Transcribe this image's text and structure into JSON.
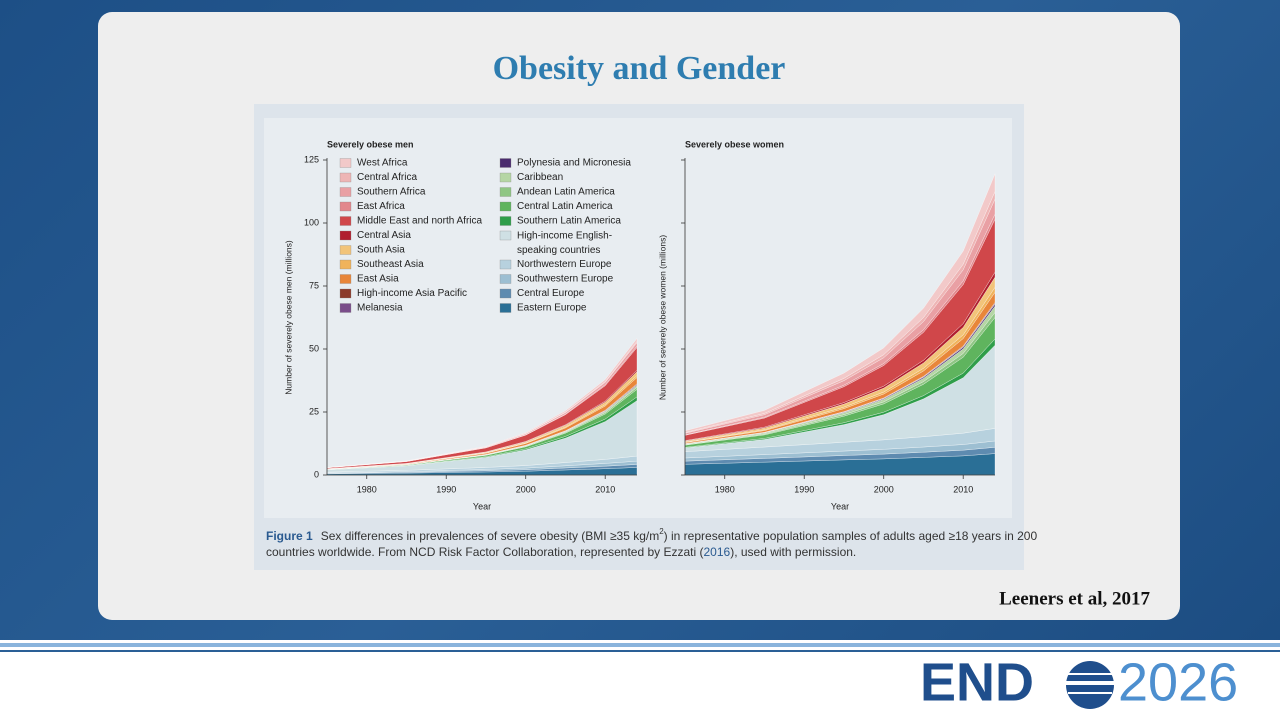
{
  "slide": {
    "title": "Obesity and Gender",
    "citation": "Leeners et al, 2017",
    "logo": {
      "left": "END",
      "right": "2026"
    },
    "caption": {
      "label": "Figure 1",
      "text1": "Sex differences in prevalences of severe obesity (BMI ≥35 kg/m",
      "sup": "2",
      "text2": ") in representative population samples of adults aged ≥18 years in 200",
      "text3": "countries worldwide. From NCD Risk Factor Collaboration, represented by Ezzati (",
      "link": "2016",
      "text4": "), used with permission."
    }
  },
  "chart_data": [
    {
      "type": "stacked-area",
      "title": "Severely obese men",
      "x_label": "Year",
      "y_label": "Number of severely obese men (millions)",
      "x": [
        1975,
        1985,
        1995,
        2000,
        2005,
        2010,
        2014
      ],
      "xlim": [
        1975,
        2014
      ],
      "xticks": [
        1980,
        1990,
        2000,
        2010
      ],
      "ylim": [
        0,
        125
      ],
      "yticks": [
        0,
        25,
        50,
        75,
        100,
        125
      ],
      "series": [
        {
          "name": "West Africa",
          "color": "#f2c9c9",
          "values": [
            0.05,
            0.1,
            0.2,
            0.3,
            0.5,
            0.8,
            1.2
          ]
        },
        {
          "name": "Central Africa",
          "color": "#eeb5b5",
          "values": [
            0.02,
            0.04,
            0.09,
            0.14,
            0.22,
            0.34,
            0.5
          ]
        },
        {
          "name": "Southern Africa",
          "color": "#e9a0a4",
          "values": [
            0.05,
            0.1,
            0.23,
            0.36,
            0.57,
            0.88,
            1.3
          ]
        },
        {
          "name": "East Africa",
          "color": "#e2878c",
          "values": [
            0.02,
            0.05,
            0.11,
            0.17,
            0.26,
            0.41,
            0.6
          ]
        },
        {
          "name": "Middle East and north Africa",
          "color": "#d0474a",
          "values": [
            0.36,
            0.72,
            1.6,
            2.5,
            4,
            6.1,
            9
          ]
        },
        {
          "name": "Central Asia",
          "color": "#b01e2e",
          "values": [
            0.02,
            0.05,
            0.11,
            0.17,
            0.26,
            0.41,
            0.6
          ]
        },
        {
          "name": "South Asia",
          "color": "#f2c47a",
          "values": [
            0.06,
            0.12,
            0.27,
            0.42,
            0.66,
            1,
            1.5
          ]
        },
        {
          "name": "Southeast Asia",
          "color": "#f0b35b",
          "values": [
            0.03,
            0.06,
            0.14,
            0.22,
            0.35,
            0.54,
            0.8
          ]
        },
        {
          "name": "East Asia",
          "color": "#e8863a",
          "values": [
            0.1,
            0.2,
            0.45,
            0.7,
            1.1,
            1.7,
            2.5
          ]
        },
        {
          "name": "High-income Asia Pacific",
          "color": "#8b3a2b",
          "values": [
            0.01,
            0.02,
            0.05,
            0.08,
            0.13,
            0.2,
            0.3
          ]
        },
        {
          "name": "Melanesia",
          "color": "#7a4d8a",
          "values": [
            0,
            0.01,
            0.02,
            0.03,
            0.04,
            0.07,
            0.1
          ]
        },
        {
          "name": "Polynesia and Micronesia",
          "color": "#4a2c6e",
          "values": [
            0.01,
            0.02,
            0.05,
            0.08,
            0.13,
            0.2,
            0.3
          ]
        },
        {
          "name": "Caribbean",
          "color": "#b5d6a4",
          "values": [
            0.03,
            0.06,
            0.13,
            0.2,
            0.31,
            0.48,
            0.7
          ]
        },
        {
          "name": "Andean Latin America",
          "color": "#8fc684",
          "values": [
            0.03,
            0.06,
            0.14,
            0.22,
            0.35,
            0.54,
            0.8
          ]
        },
        {
          "name": "Central Latin America",
          "color": "#5fb45e",
          "values": [
            0.12,
            0.24,
            0.54,
            0.84,
            1.3,
            2,
            3
          ]
        },
        {
          "name": "Southern Latin America",
          "color": "#2f9e4a",
          "values": [
            0.06,
            0.12,
            0.27,
            0.42,
            0.66,
            1,
            1.5
          ]
        },
        {
          "name": "High-income English-\nspeaking countries",
          "color": "#cfe0e4",
          "values": [
            0.9,
            1.8,
            4,
            6.2,
            9.7,
            15,
            22
          ]
        },
        {
          "name": "Northwestern Europe",
          "color": "#b7d1de",
          "values": [
            0.3,
            0.5,
            0.8,
            1,
            1.3,
            1.6,
            2
          ]
        },
        {
          "name": "Southwestern Europe",
          "color": "#9dbfd2",
          "values": [
            0.2,
            0.3,
            0.5,
            0.65,
            0.85,
            1.1,
            1.3
          ]
        },
        {
          "name": "Central Europe",
          "color": "#5e8bb0",
          "values": [
            0.2,
            0.3,
            0.5,
            0.6,
            0.8,
            1,
            1.2
          ]
        },
        {
          "name": "Eastern Europe",
          "color": "#2a6f96",
          "values": [
            0.45,
            0.75,
            1.2,
            1.5,
            2,
            2.5,
            3
          ]
        }
      ]
    },
    {
      "type": "stacked-area",
      "title": "Severely obese women",
      "x_label": "Year",
      "y_label": "Number of severely obese women (millions)",
      "x": [
        1975,
        1985,
        1995,
        2000,
        2005,
        2010,
        2014
      ],
      "xlim": [
        1975,
        2014
      ],
      "xticks": [
        1980,
        1990,
        2000,
        2010
      ],
      "ylim": [
        0,
        125
      ],
      "yticks": [
        0,
        25,
        50,
        75,
        100,
        125
      ],
      "series": [
        {
          "color": "#f2c9c9",
          "values": [
            0.7,
            1.2,
            2.1,
            2.7,
            3.7,
            5.2,
            7
          ]
        },
        {
          "color": "#eeb5b5",
          "values": [
            0.3,
            0.5,
            0.9,
            1.2,
            1.6,
            2.2,
            3
          ]
        },
        {
          "color": "#e9a0a4",
          "values": [
            0.6,
            1,
            1.8,
            2.3,
            3.2,
            4.4,
            6
          ]
        },
        {
          "color": "#e2878c",
          "values": [
            0.2,
            0.34,
            0.6,
            0.78,
            1.06,
            1.48,
            2
          ]
        },
        {
          "color": "#d0474a",
          "values": [
            2.1,
            3.6,
            6.3,
            8.2,
            11.1,
            15.5,
            21
          ]
        },
        {
          "color": "#b01e2e",
          "values": [
            0.2,
            0.34,
            0.6,
            0.78,
            1.06,
            1.48,
            2
          ]
        },
        {
          "color": "#f2c47a",
          "values": [
            0.4,
            0.68,
            1.2,
            1.56,
            2.12,
            2.96,
            4
          ]
        },
        {
          "color": "#f0b35b",
          "values": [
            0.2,
            0.34,
            0.6,
            0.78,
            1.06,
            1.48,
            2
          ]
        },
        {
          "color": "#e8863a",
          "values": [
            0.4,
            0.68,
            1.2,
            1.56,
            2.12,
            2.96,
            4
          ]
        },
        {
          "color": "#8b3a2b",
          "values": [
            0.04,
            0.07,
            0.12,
            0.16,
            0.21,
            0.3,
            0.4
          ]
        },
        {
          "color": "#7a4d8a",
          "values": [
            0.03,
            0.05,
            0.09,
            0.12,
            0.16,
            0.22,
            0.3
          ]
        },
        {
          "color": "#4a2c6e",
          "values": [
            0.08,
            0.14,
            0.24,
            0.31,
            0.42,
            0.59,
            0.8
          ]
        },
        {
          "color": "#b5d6a4",
          "values": [
            0.25,
            0.43,
            0.75,
            0.98,
            1.3,
            1.85,
            2.5
          ]
        },
        {
          "color": "#8fc684",
          "values": [
            0.2,
            0.34,
            0.6,
            0.78,
            1.06,
            1.48,
            2
          ]
        },
        {
          "color": "#5fb45e",
          "values": [
            0.85,
            1.4,
            2.6,
            3.3,
            4.5,
            6.3,
            8.5
          ]
        },
        {
          "color": "#2f9e4a",
          "values": [
            0.25,
            0.43,
            0.75,
            0.98,
            1.3,
            1.85,
            2.5
          ]
        },
        {
          "color": "#cfe0e4",
          "values": [
            1.5,
            3,
            7,
            10,
            15,
            22,
            33
          ]
        },
        {
          "color": "#b7d1de",
          "values": [
            2.5,
            3,
            3.5,
            3.75,
            4.1,
            4.5,
            5
          ]
        },
        {
          "color": "#9dbfd2",
          "values": [
            1.25,
            1.5,
            1.75,
            1.9,
            2.05,
            2.25,
            2.5
          ]
        },
        {
          "color": "#5e8bb0",
          "values": [
            1.25,
            1.5,
            1.75,
            1.9,
            2.05,
            2.25,
            2.5
          ]
        },
        {
          "color": "#2a6f96",
          "values": [
            4.25,
            5.1,
            6,
            6.4,
            7,
            7.6,
            8.5
          ]
        }
      ]
    }
  ]
}
